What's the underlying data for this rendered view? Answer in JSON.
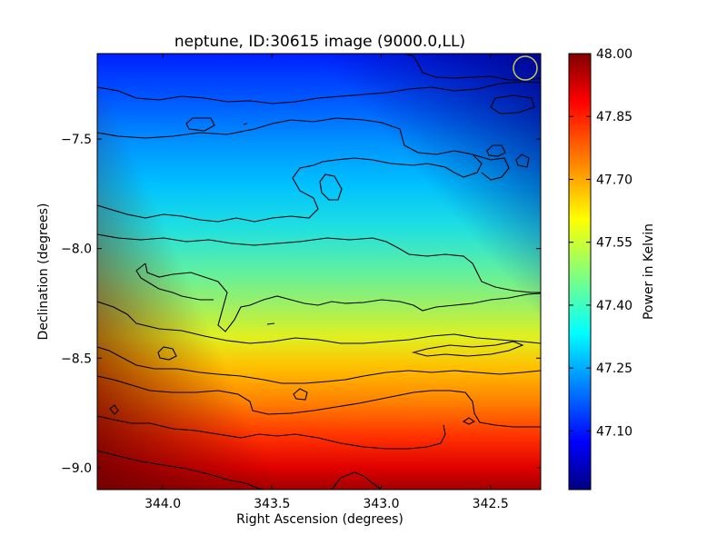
{
  "chart_data": {
    "type": "heatmap",
    "title": "neptune, ID:30615 image (9000.0,LL)",
    "xlabel": "Right Ascension (degrees)",
    "ylabel": "Declination (degrees)",
    "xlim": [
      344.3,
      342.27
    ],
    "ylim": [
      -9.1,
      -7.11
    ],
    "x_ticks": [
      {
        "value": 344.0,
        "label": "344.0"
      },
      {
        "value": 343.5,
        "label": "343.5"
      },
      {
        "value": 343.0,
        "label": "343.0"
      },
      {
        "value": 342.5,
        "label": "342.5"
      }
    ],
    "y_ticks": [
      {
        "value": -7.5,
        "label": "−7.5"
      },
      {
        "value": -8.0,
        "label": "−8.0"
      },
      {
        "value": -8.5,
        "label": "−8.5"
      },
      {
        "value": -9.0,
        "label": "−9.0"
      }
    ],
    "colorbar": {
      "label": "Power in Kelvin",
      "colormap": "jet",
      "range": [
        46.96,
        48.0
      ],
      "ticks": [
        {
          "value": 48.0,
          "label": "48.00"
        },
        {
          "value": 47.85,
          "label": "47.85"
        },
        {
          "value": 47.7,
          "label": "47.70"
        },
        {
          "value": 47.55,
          "label": "47.55"
        },
        {
          "value": 47.4,
          "label": "47.40"
        },
        {
          "value": 47.25,
          "label": "47.25"
        },
        {
          "value": 47.1,
          "label": "47.10"
        }
      ]
    },
    "gradient_dec_values": [
      {
        "dec": -7.11,
        "value": 47.05
      },
      {
        "dec": -7.3,
        "value": 47.13
      },
      {
        "dec": -7.5,
        "value": 47.24
      },
      {
        "dec": -7.75,
        "value": 47.34
      },
      {
        "dec": -8.0,
        "value": 47.42
      },
      {
        "dec": -8.25,
        "value": 47.5
      },
      {
        "dec": -8.5,
        "value": 47.62
      },
      {
        "dec": -8.75,
        "value": 47.78
      },
      {
        "dec": -9.0,
        "value": 47.9
      },
      {
        "dec": -9.1,
        "value": 47.96
      }
    ],
    "beam_marker": {
      "shape": "circle",
      "color": "#c8c84a",
      "ra": 342.34,
      "dec": -7.18
    }
  }
}
